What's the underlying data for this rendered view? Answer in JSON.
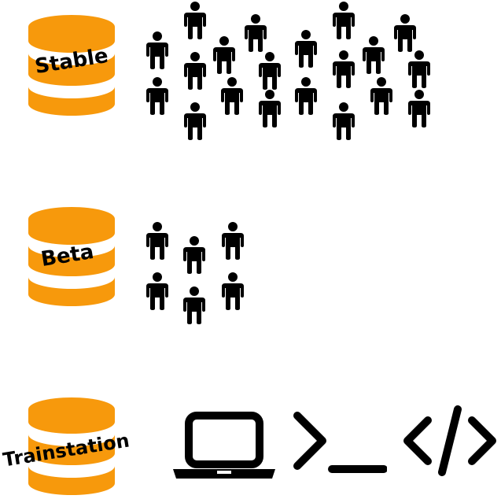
{
  "tiers": [
    {
      "label": "Stable",
      "users": 21
    },
    {
      "label": "Beta",
      "users": 6
    },
    {
      "label": "Trainstation",
      "tools": [
        "laptop-icon",
        "terminal-icon",
        "code-icon"
      ]
    }
  ],
  "colors": {
    "database": "#f7990c",
    "ink": "#000000",
    "background": "#ffffff"
  }
}
